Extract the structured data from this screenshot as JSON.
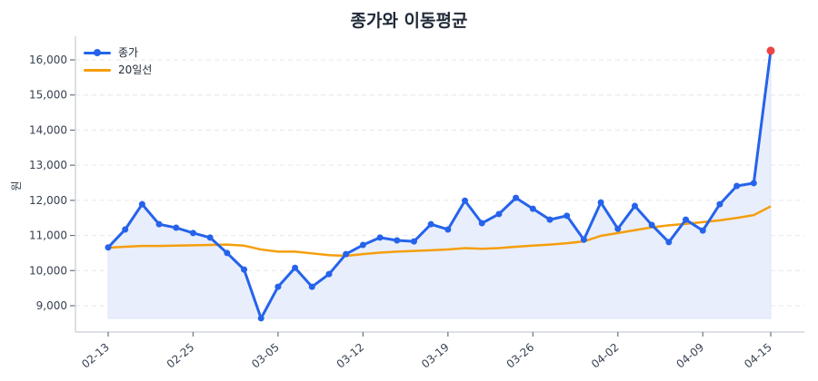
{
  "chart_data": {
    "type": "line",
    "title": "종가와 이동평균",
    "xlabel": "",
    "ylabel": "원",
    "ylim": [
      8300,
      16650
    ],
    "yticks": [
      9000,
      10000,
      11000,
      12000,
      13000,
      14000,
      15000,
      16000
    ],
    "ytick_labels": [
      "9,000",
      "10,000",
      "11,000",
      "12,000",
      "13,000",
      "14,000",
      "15,000",
      "16,000"
    ],
    "xtick_indices": [
      0,
      5,
      10,
      15,
      20,
      25,
      30,
      35,
      39
    ],
    "xtick_labels": [
      "02-13",
      "02-25",
      "03-05",
      "03-12",
      "03-19",
      "03-26",
      "04-02",
      "04-09",
      "04-15"
    ],
    "grid": "y-dashed",
    "legend_position": "upper left",
    "series": [
      {
        "name": "종가",
        "color": "#2563eb",
        "marker": "circle",
        "fill": "#e8eefc",
        "values": [
          10660,
          11170,
          11890,
          11320,
          11220,
          11070,
          10940,
          10500,
          10030,
          8640,
          9540,
          10080,
          9540,
          9900,
          10470,
          10730,
          10940,
          10860,
          10830,
          11320,
          11170,
          11990,
          11350,
          11610,
          12070,
          11760,
          11450,
          11560,
          10880,
          11940,
          11190,
          11840,
          11300,
          10810,
          11450,
          11140,
          11890,
          12410,
          12490,
          16260
        ],
        "last_point_color": "#ef4444"
      },
      {
        "name": "20일선",
        "color": "#f59e0b",
        "values": [
          10650,
          10680,
          10700,
          10700,
          10710,
          10720,
          10730,
          10740,
          10710,
          10600,
          10540,
          10540,
          10490,
          10440,
          10420,
          10470,
          10510,
          10540,
          10560,
          10580,
          10600,
          10640,
          10620,
          10640,
          10680,
          10710,
          10740,
          10780,
          10830,
          10990,
          11070,
          11150,
          11230,
          11290,
          11330,
          11380,
          11430,
          11500,
          11580,
          11830
        ]
      }
    ]
  },
  "legend": {
    "items": [
      {
        "label": "종가"
      },
      {
        "label": "20일선"
      }
    ]
  }
}
